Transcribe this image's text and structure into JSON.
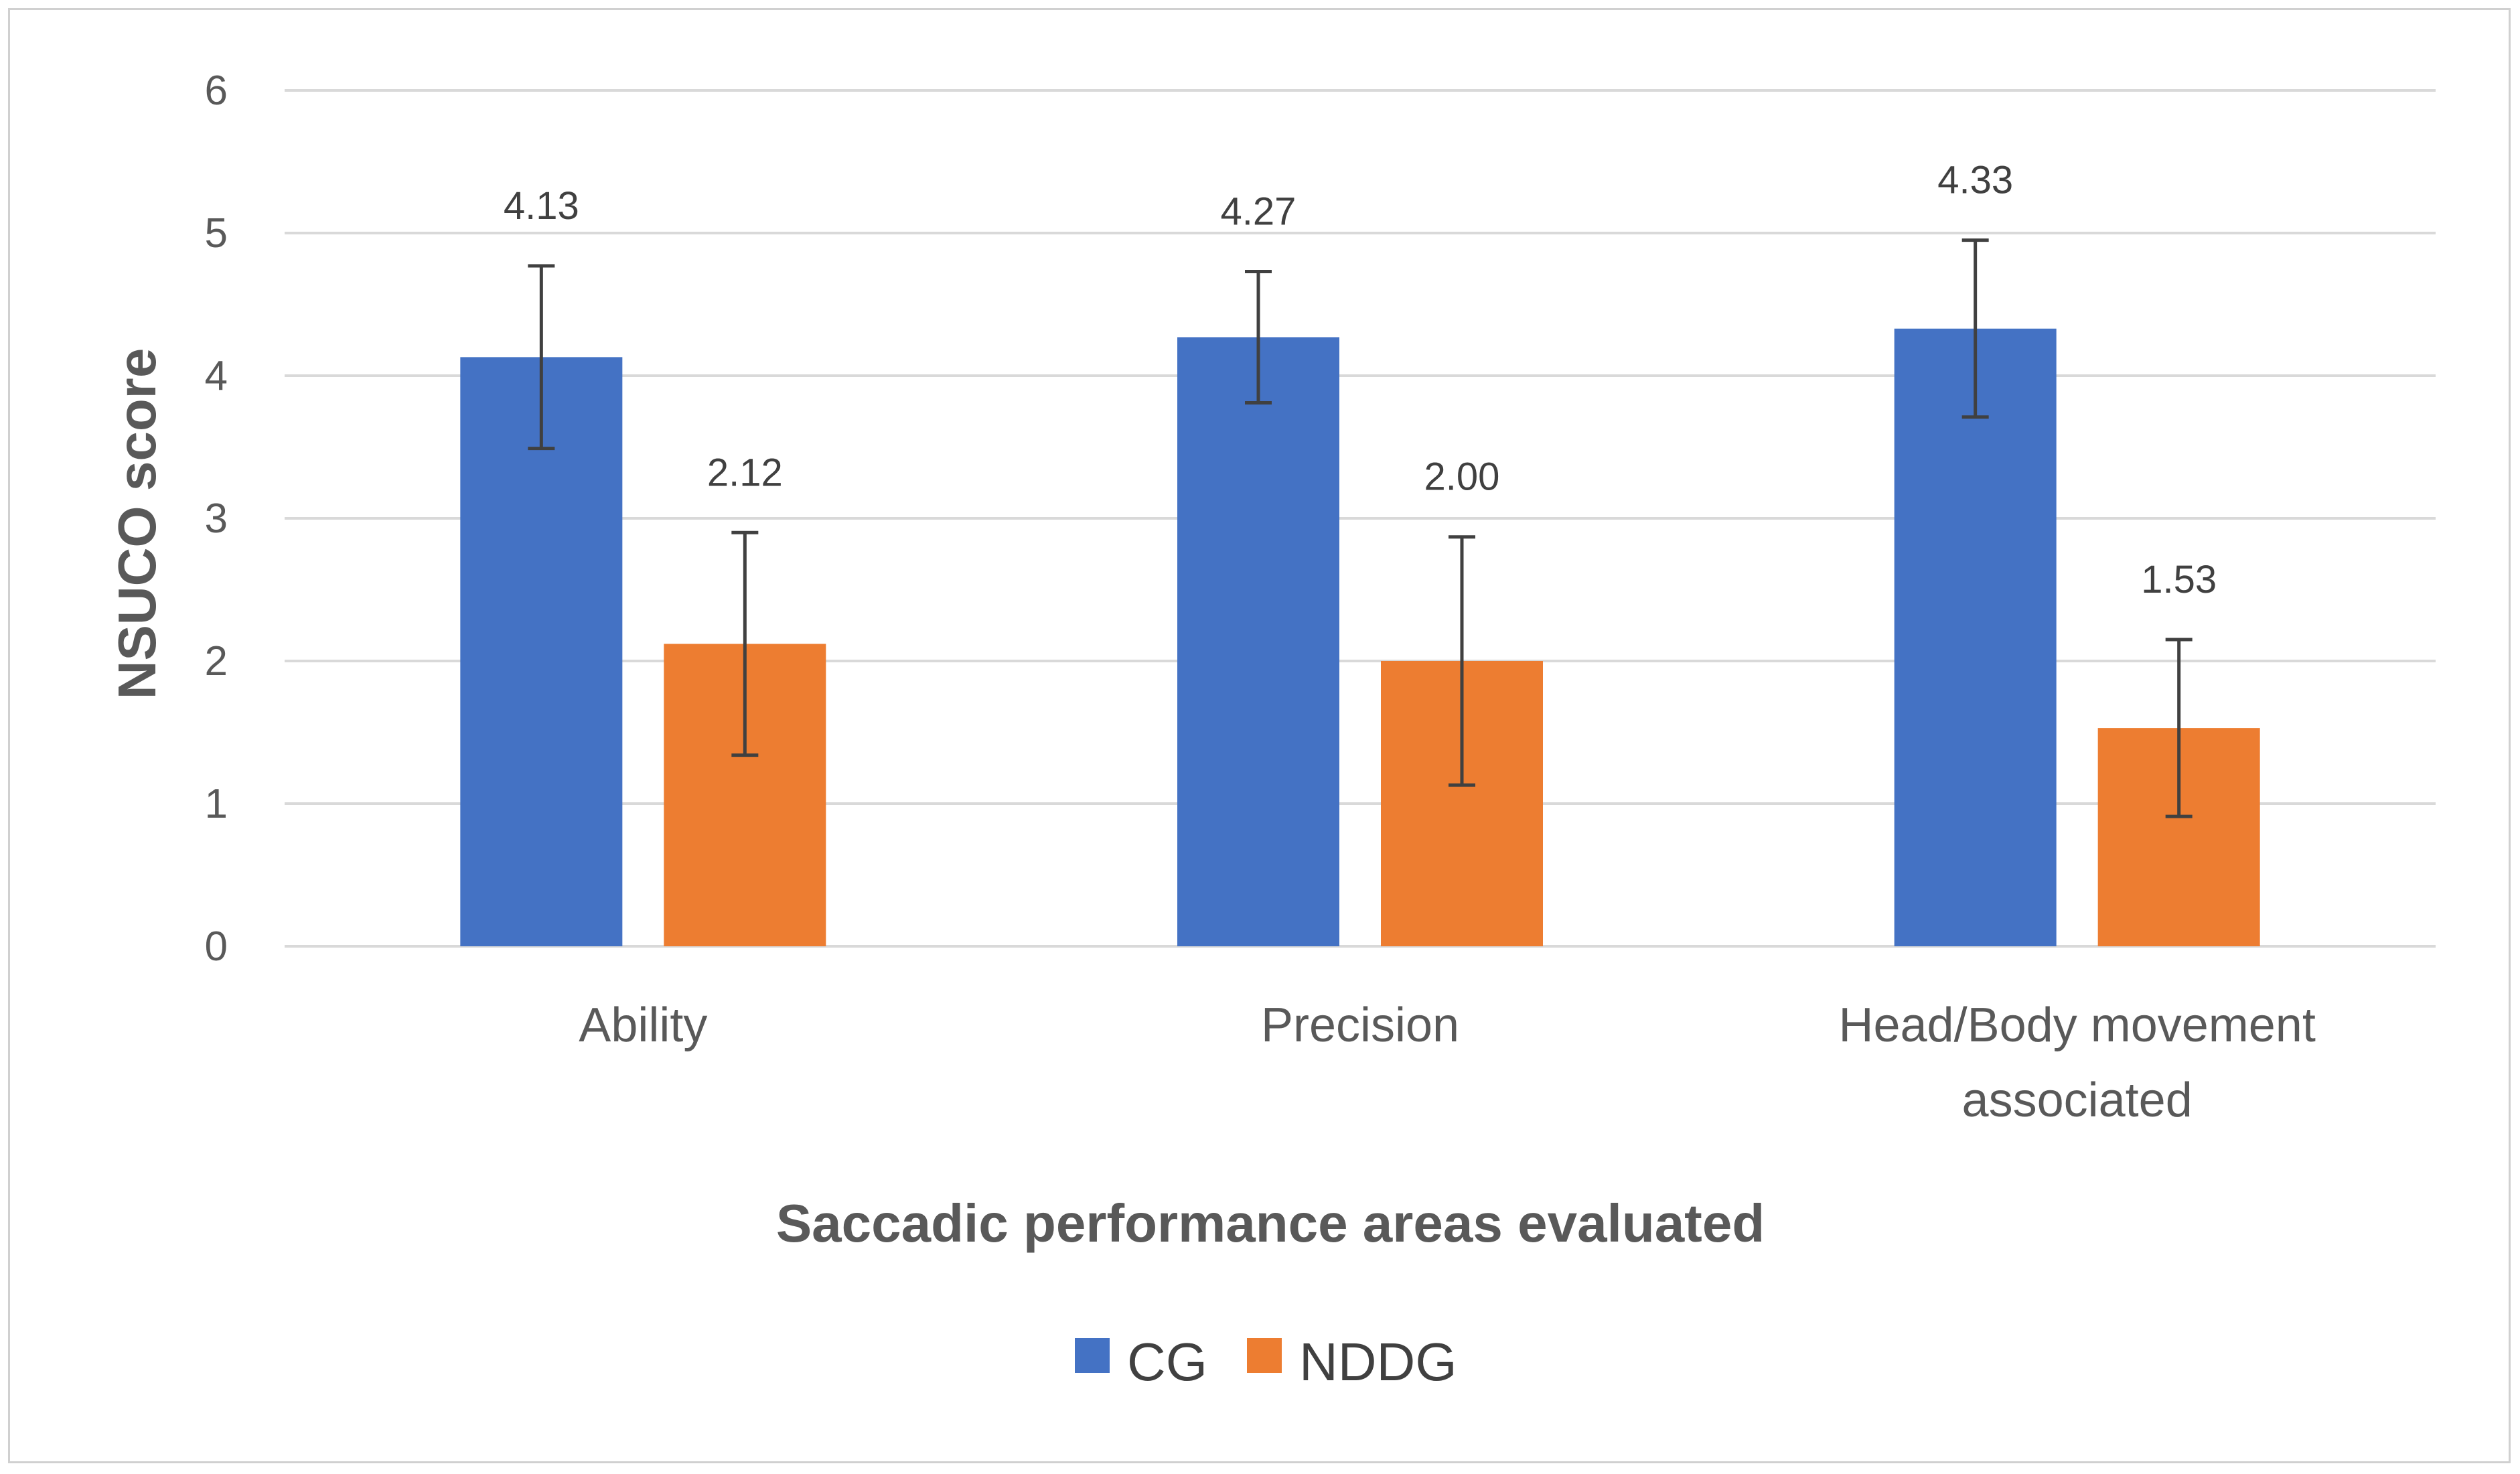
{
  "chart_data": {
    "type": "bar",
    "categories": [
      [
        "Ability"
      ],
      [
        "Precision"
      ],
      [
        "Head/Body movement",
        "associated"
      ]
    ],
    "series": [
      {
        "name": "CG",
        "color": "#4472C4",
        "values": [
          4.13,
          4.27,
          4.33
        ],
        "error": [
          0.64,
          0.46,
          0.62
        ],
        "labels": [
          "4.13",
          "4.27",
          "4.33"
        ]
      },
      {
        "name": "NDDG",
        "color": "#ED7D31",
        "values": [
          2.12,
          2.0,
          1.53
        ],
        "error": [
          0.78,
          0.87,
          0.62
        ],
        "labels": [
          "2.12",
          "2.00",
          "1.53"
        ]
      }
    ],
    "xlabel": "Saccadic performance areas evaluated",
    "ylabel": "NSUCO score",
    "ylim": [
      0,
      6
    ],
    "yticks": [
      "0",
      "1",
      "2",
      "3",
      "4",
      "5",
      "6"
    ],
    "grid": true,
    "legend_position": "bottom"
  }
}
